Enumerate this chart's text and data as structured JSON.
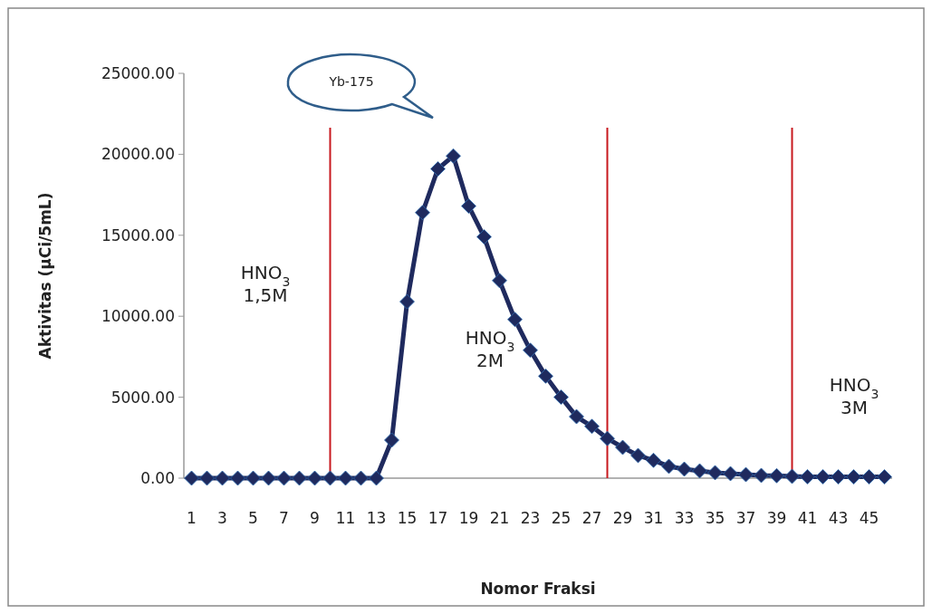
{
  "chart_data": {
    "type": "line",
    "xlabel": "Nomor Fraksi",
    "ylabel": "Aktivitas (µCi/5mL)",
    "x": [
      1,
      2,
      3,
      4,
      5,
      6,
      7,
      8,
      9,
      10,
      11,
      12,
      13,
      14,
      15,
      16,
      17,
      18,
      19,
      20,
      21,
      22,
      23,
      24,
      25,
      26,
      27,
      28,
      29,
      30,
      31,
      32,
      33,
      34,
      35,
      36,
      37,
      38,
      39,
      40,
      41,
      42,
      43,
      44,
      45,
      46
    ],
    "series": [
      {
        "color": "#1f2a5e",
        "values": [
          0,
          0,
          0,
          0,
          0,
          0,
          0,
          0,
          0,
          0,
          0,
          0,
          0,
          2350,
          10900,
          16400,
          19100,
          19900,
          16800,
          14900,
          12200,
          9800,
          7900,
          6300,
          5000,
          3800,
          3200,
          2450,
          1900,
          1400,
          1100,
          730,
          560,
          450,
          340,
          280,
          220,
          170,
          150,
          110,
          90,
          90,
          80,
          80,
          80,
          80
        ]
      }
    ],
    "xlim": [
      0.5,
      46.5
    ],
    "xticks": [
      1,
      3,
      5,
      7,
      9,
      11,
      13,
      15,
      17,
      19,
      21,
      23,
      25,
      27,
      29,
      31,
      33,
      35,
      37,
      39,
      41,
      43,
      45
    ],
    "ylim": [
      0,
      25000
    ],
    "yticks": [
      {
        "value": 0,
        "label": "0.00"
      },
      {
        "value": 5000,
        "label": "5000.00"
      },
      {
        "value": 10000,
        "label": "10000.00"
      },
      {
        "value": 15000,
        "label": "15000.00"
      },
      {
        "value": 20000,
        "label": "20000.00"
      },
      {
        "value": 25000,
        "label": "25000.00"
      }
    ],
    "grid": false,
    "marker": "diamond",
    "line_style": "solid",
    "ref_lines": [
      {
        "axis": "x",
        "value": 10,
        "color": "#c8191e"
      },
      {
        "axis": "x",
        "value": 28,
        "color": "#c8191e"
      },
      {
        "axis": "x",
        "value": 40,
        "color": "#c8191e"
      }
    ],
    "annotations": [
      "Yb-175",
      "HNO$_{3}$\n1,5M",
      "HNO$_{3}$\n2M",
      "HNO$_{3}$\n3M"
    ]
  }
}
